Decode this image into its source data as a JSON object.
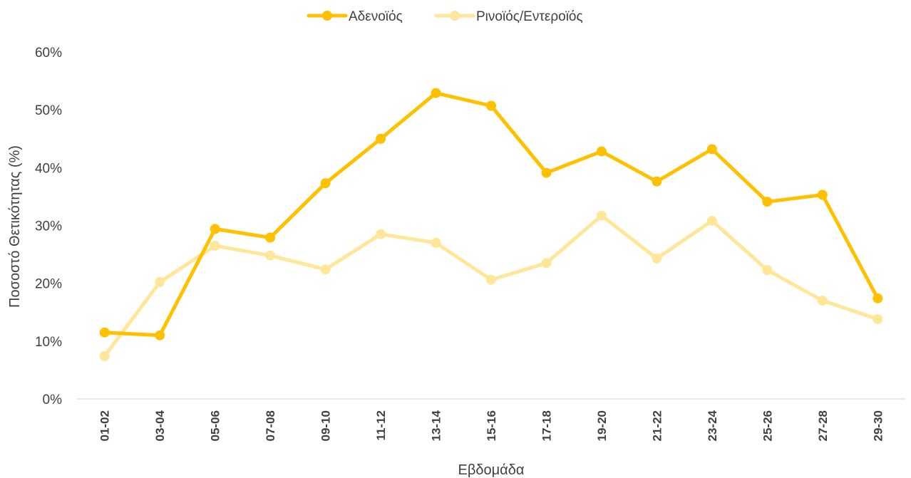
{
  "chart_data": {
    "type": "line",
    "title": "",
    "xlabel": "Εβδομάδα",
    "ylabel": "Ποσοστό Θετικότητας (%)",
    "ylim": [
      0,
      60
    ],
    "yticks": [
      "0%",
      "10%",
      "20%",
      "30%",
      "40%",
      "50%",
      "60%"
    ],
    "grid": false,
    "legend_position": "top-center",
    "categories": [
      "01-02",
      "03-04",
      "05-06",
      "07-08",
      "09-10",
      "11-12",
      "13-14",
      "15-16",
      "17-18",
      "19-20",
      "21-22",
      "23-24",
      "25-26",
      "27-28",
      "29-30"
    ],
    "series": [
      {
        "name": "Αδενοϊός",
        "color": "#FFC000",
        "values": [
          11.5,
          11.0,
          29.4,
          27.9,
          37.3,
          45.0,
          52.9,
          50.7,
          39.1,
          42.8,
          37.6,
          43.2,
          34.1,
          35.3,
          17.4
        ]
      },
      {
        "name": "Ρινοϊός/Εντεροϊός",
        "color": "#FFE699",
        "values": [
          7.4,
          20.2,
          26.5,
          24.8,
          22.4,
          28.5,
          27.0,
          20.6,
          23.5,
          31.7,
          24.3,
          30.8,
          22.3,
          17.0,
          13.8
        ]
      }
    ]
  }
}
